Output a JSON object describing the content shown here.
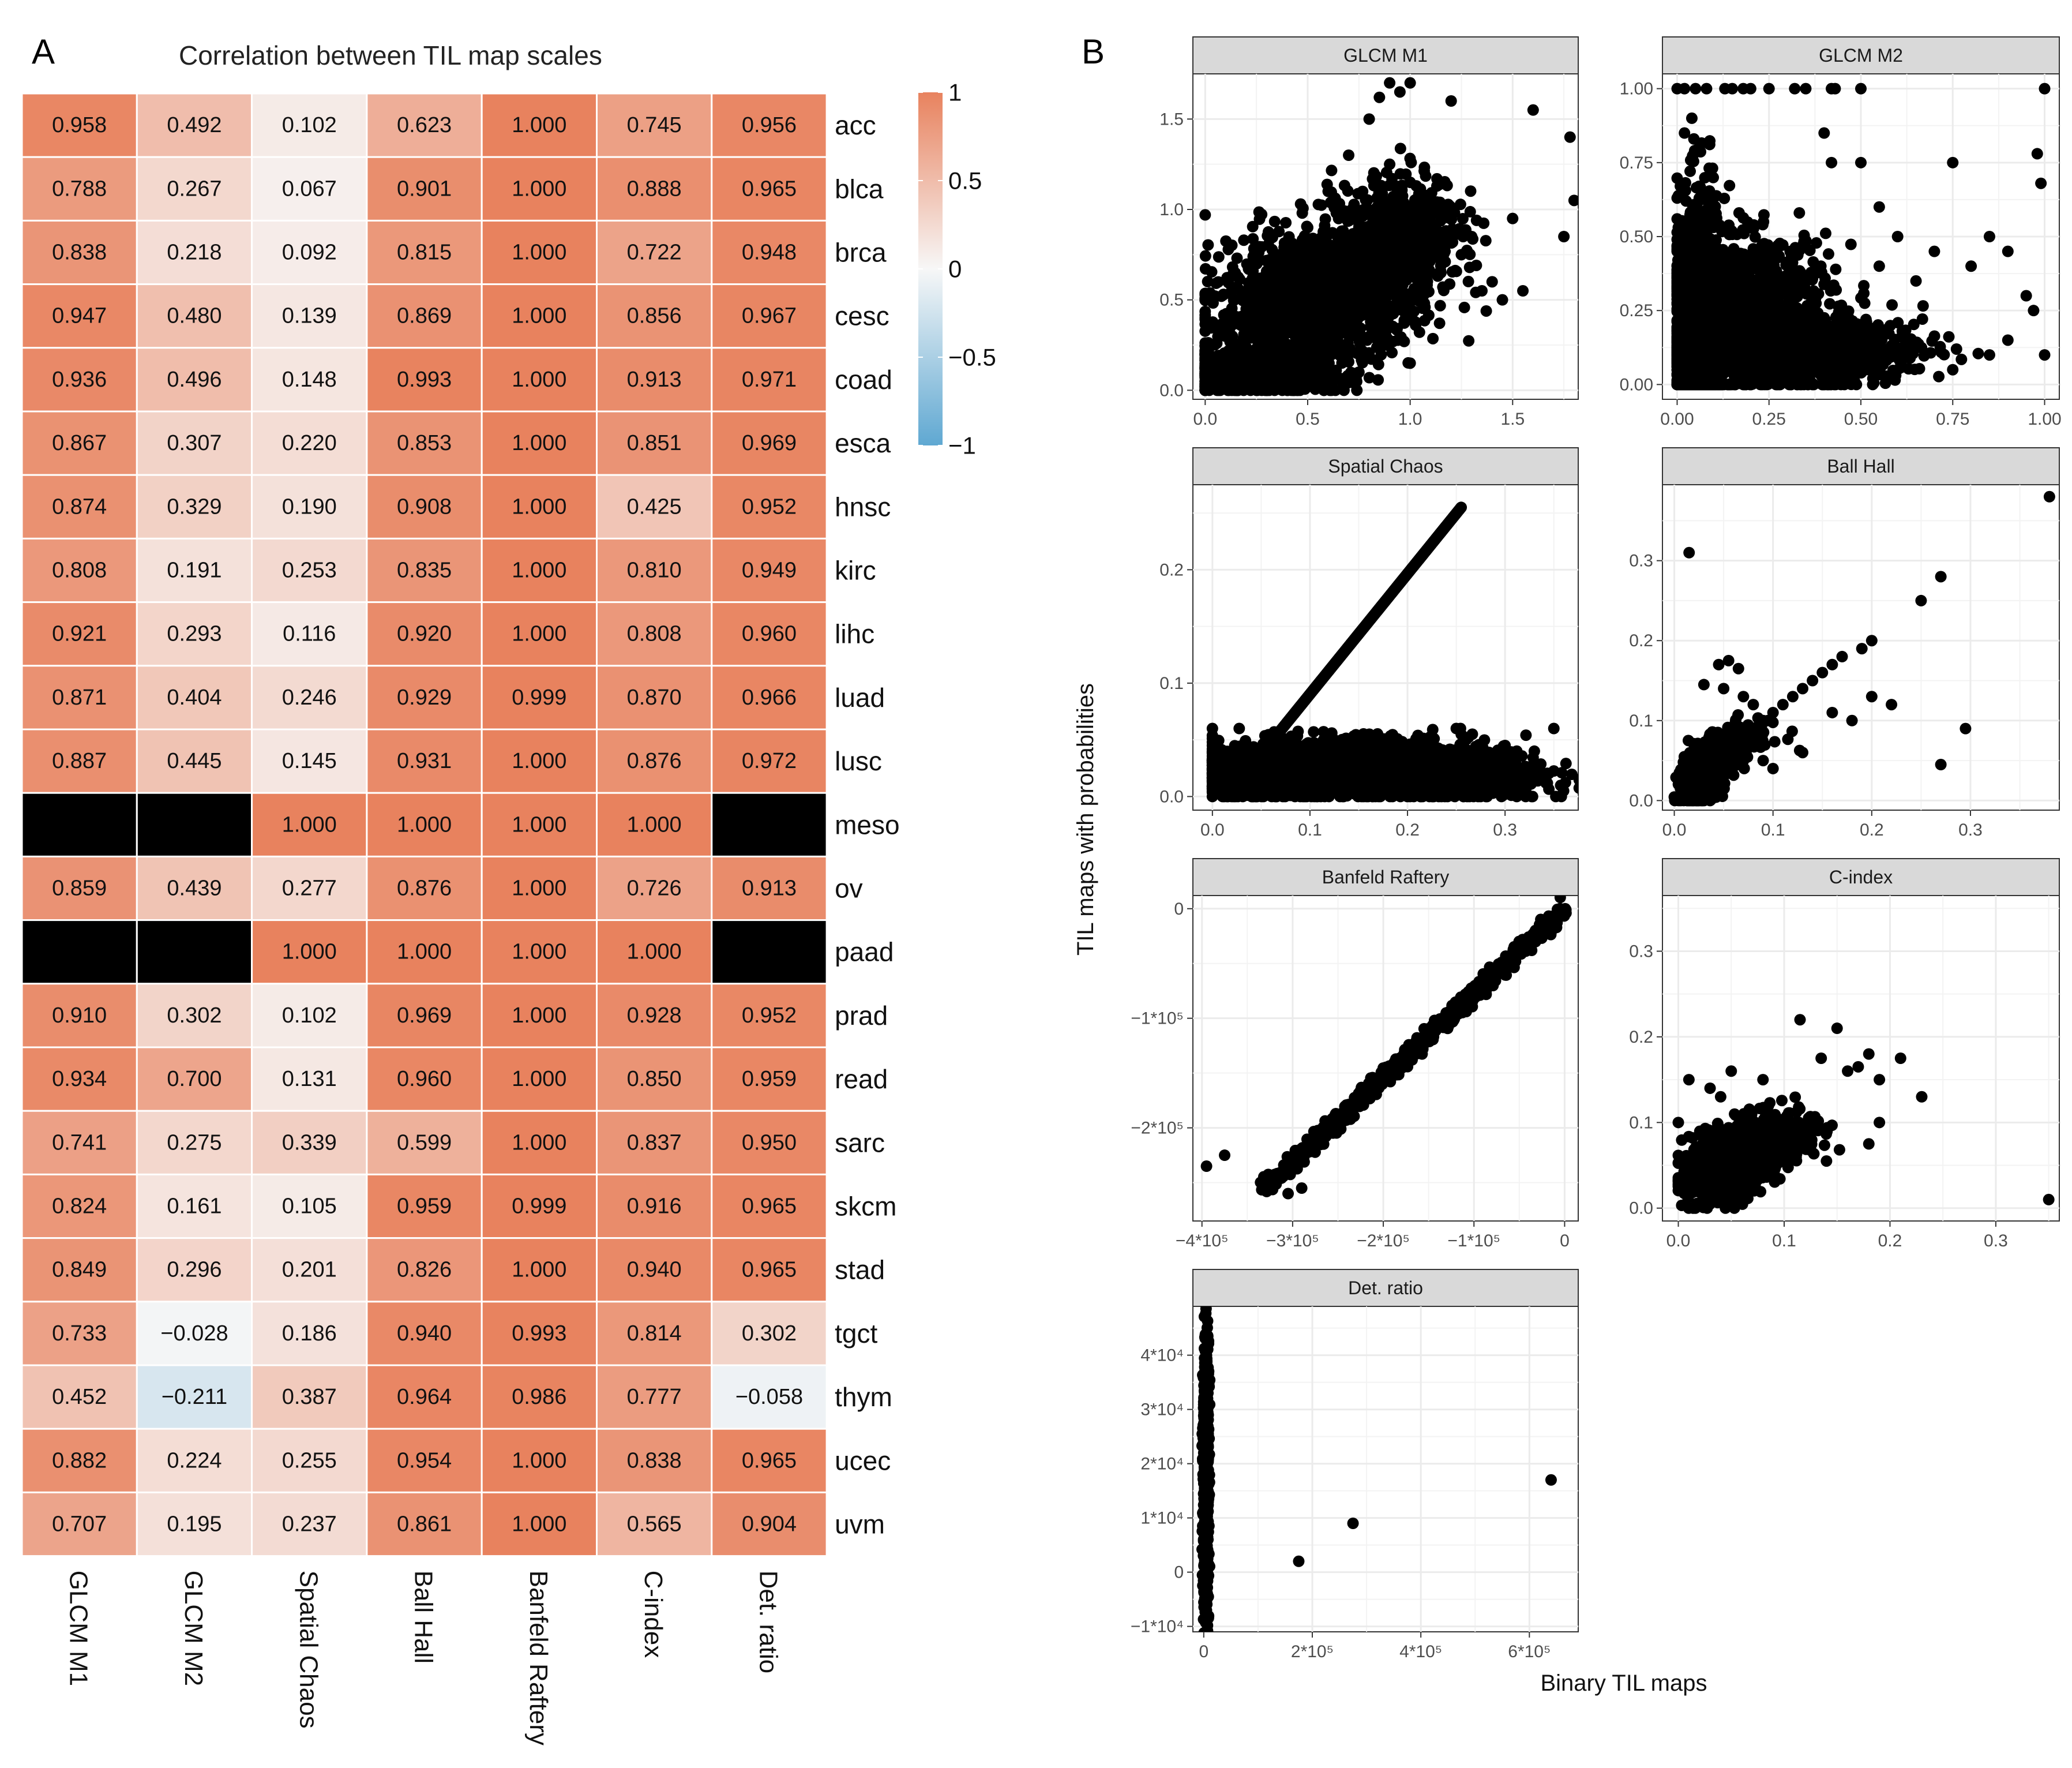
{
  "panel_a": {
    "letter": "A",
    "title": "Correlation between TIL map scales"
  },
  "panel_b": {
    "letter": "B",
    "xlabel": "Binary TIL maps",
    "ylabel": "TIL maps with probabilities"
  },
  "colors": {
    "high": "#E8825E",
    "mid": "#F7F7F7",
    "low": "#5FA8D2",
    "na": "#000000",
    "strip_fill": "#D9D9D9",
    "panel_grid": "#EBEBEB",
    "point": "#000000"
  },
  "chart_data": [
    {
      "type": "heatmap",
      "title": "Correlation between TIL map scales",
      "columns": [
        "GLCM M1",
        "GLCM M2",
        "Spatial Chaos",
        "Ball Hall",
        "Banfeld Raftery",
        "C-index",
        "Det. ratio"
      ],
      "rows": [
        "acc",
        "blca",
        "brca",
        "cesc",
        "coad",
        "esca",
        "hnsc",
        "kirc",
        "lihc",
        "luad",
        "lusc",
        "meso",
        "ov",
        "paad",
        "prad",
        "read",
        "sarc",
        "skcm",
        "stad",
        "tgct",
        "thym",
        "ucec",
        "uvm"
      ],
      "values": [
        [
          "0.958",
          "0.492",
          "0.102",
          "0.623",
          "1.000",
          "0.745",
          "0.956"
        ],
        [
          "0.788",
          "0.267",
          "0.067",
          "0.901",
          "1.000",
          "0.888",
          "0.965"
        ],
        [
          "0.838",
          "0.218",
          "0.092",
          "0.815",
          "1.000",
          "0.722",
          "0.948"
        ],
        [
          "0.947",
          "0.480",
          "0.139",
          "0.869",
          "1.000",
          "0.856",
          "0.967"
        ],
        [
          "0.936",
          "0.496",
          "0.148",
          "0.993",
          "1.000",
          "0.913",
          "0.971"
        ],
        [
          "0.867",
          "0.307",
          "0.220",
          "0.853",
          "1.000",
          "0.851",
          "0.969"
        ],
        [
          "0.874",
          "0.329",
          "0.190",
          "0.908",
          "1.000",
          "0.425",
          "0.952"
        ],
        [
          "0.808",
          "0.191",
          "0.253",
          "0.835",
          "1.000",
          "0.810",
          "0.949"
        ],
        [
          "0.921",
          "0.293",
          "0.116",
          "0.920",
          "1.000",
          "0.808",
          "0.960"
        ],
        [
          "0.871",
          "0.404",
          "0.246",
          "0.929",
          "0.999",
          "0.870",
          "0.966"
        ],
        [
          "0.887",
          "0.445",
          "0.145",
          "0.931",
          "1.000",
          "0.876",
          "0.972"
        ],
        [
          null,
          null,
          "1.000",
          "1.000",
          "1.000",
          "1.000",
          null
        ],
        [
          "0.859",
          "0.439",
          "0.277",
          "0.876",
          "1.000",
          "0.726",
          "0.913"
        ],
        [
          null,
          null,
          "1.000",
          "1.000",
          "1.000",
          "1.000",
          null
        ],
        [
          "0.910",
          "0.302",
          "0.102",
          "0.969",
          "1.000",
          "0.928",
          "0.952"
        ],
        [
          "0.934",
          "0.700",
          "0.131",
          "0.960",
          "1.000",
          "0.850",
          "0.959"
        ],
        [
          "0.741",
          "0.275",
          "0.339",
          "0.599",
          "1.000",
          "0.837",
          "0.950"
        ],
        [
          "0.824",
          "0.161",
          "0.105",
          "0.959",
          "0.999",
          "0.916",
          "0.965"
        ],
        [
          "0.849",
          "0.296",
          "0.201",
          "0.826",
          "1.000",
          "0.940",
          "0.965"
        ],
        [
          "0.733",
          "−0.028",
          "0.186",
          "0.940",
          "0.993",
          "0.814",
          "0.302"
        ],
        [
          "0.452",
          "−0.211",
          "0.387",
          "0.964",
          "0.986",
          "0.777",
          "−0.058"
        ],
        [
          "0.882",
          "0.224",
          "0.255",
          "0.954",
          "1.000",
          "0.838",
          "0.965"
        ],
        [
          "0.707",
          "0.195",
          "0.237",
          "0.861",
          "1.000",
          "0.565",
          "0.904"
        ]
      ],
      "legend": {
        "range": [
          -1,
          1
        ],
        "ticks": [
          "1",
          "0.5",
          "0",
          "−0.5",
          "−1"
        ],
        "tick_values": [
          1,
          0.5,
          0,
          -0.5,
          -1
        ]
      }
    },
    {
      "type": "scatter",
      "facet": "GLCM M1",
      "xlim": [
        -0.06,
        1.82
      ],
      "ylim": [
        -0.05,
        1.75
      ],
      "xticks": [
        0,
        0.5,
        1.0,
        1.5
      ],
      "xtick_labels": [
        "0.0",
        "0.5",
        "1.0",
        "1.5"
      ],
      "yticks": [
        0,
        0.5,
        1.0,
        1.5
      ],
      "ytick_labels": [
        "0.0",
        "0.5",
        "1.0",
        "1.5"
      ],
      "points": [
        [
          0.0,
          0.97
        ],
        [
          0.05,
          0.15
        ],
        [
          0.1,
          0.3
        ],
        [
          0.15,
          0.2
        ],
        [
          0.2,
          0.45
        ],
        [
          0.25,
          0.35
        ],
        [
          0.3,
          0.6
        ],
        [
          0.35,
          0.5
        ],
        [
          0.4,
          0.75
        ],
        [
          0.45,
          0.55
        ],
        [
          0.5,
          0.9
        ],
        [
          0.55,
          0.7
        ],
        [
          0.6,
          1.1
        ],
        [
          0.65,
          0.8
        ],
        [
          0.7,
          1.3
        ],
        [
          0.75,
          0.9
        ],
        [
          0.8,
          1.5
        ],
        [
          0.85,
          1.0
        ],
        [
          0.9,
          1.25
        ],
        [
          0.95,
          1.65
        ],
        [
          1.0,
          1.15
        ],
        [
          1.05,
          0.85
        ],
        [
          1.1,
          1.05
        ],
        [
          1.15,
          0.65
        ],
        [
          1.2,
          1.0
        ],
        [
          1.25,
          0.75
        ],
        [
          1.3,
          0.85
        ],
        [
          1.35,
          0.55
        ],
        [
          1.4,
          0.6
        ],
        [
          1.45,
          0.5
        ],
        [
          1.5,
          0.95
        ],
        [
          1.55,
          0.55
        ],
        [
          1.6,
          1.55
        ],
        [
          1.78,
          1.4
        ],
        [
          1.8,
          1.05
        ],
        [
          1.75,
          0.85
        ],
        [
          0.02,
          0.0
        ],
        [
          0.1,
          0.05
        ],
        [
          0.25,
          0.0
        ],
        [
          0.5,
          0.05
        ],
        [
          0.75,
          0.1
        ],
        [
          1.0,
          0.15
        ],
        [
          0.9,
          1.7
        ],
        [
          1.0,
          1.7
        ],
        [
          0.85,
          1.62
        ],
        [
          1.2,
          1.6
        ]
      ],
      "clouds": [
        {
          "cx": 0.55,
          "cy": 0.5,
          "rx": 0.6,
          "ry": 0.45,
          "n": 1500,
          "tilt": 0.55
        },
        {
          "cx": 0.25,
          "cy": 0.1,
          "rx": 0.35,
          "ry": 0.1,
          "n": 600,
          "tilt": 0.0
        },
        {
          "cx": 0.95,
          "cy": 0.85,
          "rx": 0.3,
          "ry": 0.35,
          "n": 450,
          "tilt": 0.3
        }
      ]
    },
    {
      "type": "scatter",
      "facet": "GLCM M2",
      "xlim": [
        -0.04,
        1.04
      ],
      "ylim": [
        -0.05,
        1.05
      ],
      "xticks": [
        0,
        0.25,
        0.5,
        0.75,
        1.0
      ],
      "xtick_labels": [
        "0.00",
        "0.25",
        "0.50",
        "0.75",
        "1.00"
      ],
      "yticks": [
        0,
        0.25,
        0.5,
        0.75,
        1.0
      ],
      "ytick_labels": [
        "0.00",
        "0.25",
        "0.50",
        "0.75",
        "1.00"
      ],
      "points": [
        [
          0.0,
          1.0
        ],
        [
          0.02,
          1.0
        ],
        [
          0.05,
          1.0
        ],
        [
          0.08,
          1.0
        ],
        [
          0.13,
          1.0
        ],
        [
          0.15,
          1.0
        ],
        [
          0.18,
          1.0
        ],
        [
          0.2,
          1.0
        ],
        [
          0.25,
          1.0
        ],
        [
          0.32,
          1.0
        ],
        [
          0.35,
          1.0
        ],
        [
          0.42,
          1.0
        ],
        [
          0.43,
          1.0
        ],
        [
          0.5,
          1.0
        ],
        [
          1.0,
          1.0
        ],
        [
          0.04,
          0.9
        ],
        [
          0.02,
          0.85
        ],
        [
          0.06,
          0.8
        ],
        [
          0.4,
          0.85
        ],
        [
          0.42,
          0.75
        ],
        [
          0.5,
          0.75
        ],
        [
          0.75,
          0.75
        ],
        [
          0.98,
          0.78
        ],
        [
          0.99,
          0.68
        ],
        [
          0.55,
          0.6
        ],
        [
          0.6,
          0.5
        ],
        [
          0.7,
          0.45
        ],
        [
          0.85,
          0.5
        ],
        [
          0.9,
          0.45
        ],
        [
          0.8,
          0.4
        ],
        [
          0.95,
          0.3
        ],
        [
          0.97,
          0.25
        ],
        [
          0.9,
          0.15
        ],
        [
          0.85,
          0.1
        ],
        [
          0.75,
          0.05
        ],
        [
          1.0,
          0.1
        ],
        [
          0.65,
          0.35
        ],
        [
          0.55,
          0.4
        ]
      ],
      "clouds": [
        {
          "cx": 0.06,
          "cy": 0.2,
          "rx": 0.07,
          "ry": 0.45,
          "n": 900,
          "tilt": 0.0
        },
        {
          "cx": 0.25,
          "cy": 0.1,
          "rx": 0.3,
          "ry": 0.12,
          "n": 900,
          "tilt": 0.0
        },
        {
          "cx": 0.2,
          "cy": 0.3,
          "rx": 0.22,
          "ry": 0.2,
          "n": 700,
          "tilt": 0.0
        },
        {
          "cx": 0.45,
          "cy": 0.12,
          "rx": 0.3,
          "ry": 0.12,
          "n": 250,
          "tilt": 0.0
        }
      ]
    },
    {
      "type": "scatter",
      "facet": "Spatial Chaos",
      "xlim": [
        -0.02,
        0.375
      ],
      "ylim": [
        -0.012,
        0.275
      ],
      "xticks": [
        0,
        0.1,
        0.2,
        0.3
      ],
      "xtick_labels": [
        "0.0",
        "0.1",
        "0.2",
        "0.3"
      ],
      "yticks": [
        0,
        0.1,
        0.2
      ],
      "ytick_labels": [
        "0.0",
        "0.1",
        "0.2"
      ],
      "line": {
        "x0": 0.015,
        "y0": 0.0,
        "x1": 0.255,
        "y1": 0.255,
        "n": 260
      },
      "points": [
        [
          0.0,
          0.04
        ],
        [
          0.0,
          0.03
        ],
        [
          0.0,
          0.02
        ],
        [
          0.0,
          0.01
        ],
        [
          0.0,
          0.0
        ],
        [
          0.36,
          0.005
        ],
        [
          0.35,
          0.06
        ],
        [
          0.33,
          0.04
        ],
        [
          0.3,
          0.045
        ],
        [
          0.25,
          0.06
        ]
      ],
      "clouds": [
        {
          "cx": 0.13,
          "cy": 0.025,
          "rx": 0.13,
          "ry": 0.025,
          "n": 1800,
          "tilt": 0.0
        },
        {
          "cx": 0.25,
          "cy": 0.02,
          "rx": 0.09,
          "ry": 0.025,
          "n": 500,
          "tilt": 0.0
        },
        {
          "cx": 0.05,
          "cy": 0.01,
          "rx": 0.05,
          "ry": 0.012,
          "n": 400,
          "tilt": 0.0
        }
      ]
    },
    {
      "type": "scatter",
      "facet": "Ball Hall",
      "xlim": [
        -0.012,
        0.39
      ],
      "ylim": [
        -0.012,
        0.395
      ],
      "xticks": [
        0,
        0.1,
        0.2,
        0.3
      ],
      "xtick_labels": [
        "0.0",
        "0.1",
        "0.2",
        "0.3"
      ],
      "yticks": [
        0,
        0.1,
        0.2,
        0.3
      ],
      "ytick_labels": [
        "0.0",
        "0.1",
        "0.2",
        "0.3"
      ],
      "points": [
        [
          0.38,
          0.38
        ],
        [
          0.015,
          0.31
        ],
        [
          0.27,
          0.28
        ],
        [
          0.25,
          0.25
        ],
        [
          0.2,
          0.2
        ],
        [
          0.19,
          0.19
        ],
        [
          0.17,
          0.18
        ],
        [
          0.16,
          0.17
        ],
        [
          0.15,
          0.16
        ],
        [
          0.14,
          0.15
        ],
        [
          0.13,
          0.14
        ],
        [
          0.12,
          0.13
        ],
        [
          0.11,
          0.12
        ],
        [
          0.1,
          0.11
        ],
        [
          0.09,
          0.1
        ],
        [
          0.08,
          0.09
        ],
        [
          0.07,
          0.08
        ],
        [
          0.055,
          0.175
        ],
        [
          0.045,
          0.17
        ],
        [
          0.065,
          0.165
        ],
        [
          0.03,
          0.145
        ],
        [
          0.05,
          0.14
        ],
        [
          0.07,
          0.13
        ],
        [
          0.08,
          0.12
        ],
        [
          0.295,
          0.09
        ],
        [
          0.27,
          0.045
        ],
        [
          0.16,
          0.11
        ],
        [
          0.18,
          0.1
        ],
        [
          0.13,
          0.06
        ],
        [
          0.09,
          0.05
        ],
        [
          0.1,
          0.04
        ],
        [
          0.05,
          0.03
        ],
        [
          0.2,
          0.13
        ],
        [
          0.22,
          0.12
        ]
      ],
      "clouds": [
        {
          "cx": 0.03,
          "cy": 0.03,
          "rx": 0.035,
          "ry": 0.035,
          "n": 400,
          "tilt": 0.9
        },
        {
          "cx": 0.06,
          "cy": 0.07,
          "rx": 0.05,
          "ry": 0.03,
          "n": 150,
          "tilt": 0.7
        }
      ]
    },
    {
      "type": "scatter",
      "facet": "Banfeld Raftery",
      "xlim": [
        -410000,
        15000
      ],
      "ylim": [
        -285000,
        12000
      ],
      "xticks": [
        -400000,
        -300000,
        -200000,
        -100000,
        0
      ],
      "xtick_labels": [
        "−4*10⁵",
        "−3*10⁵",
        "−2*10⁵",
        "−1*10⁵",
        "0"
      ],
      "yticks": [
        -200000,
        -100000,
        0
      ],
      "ytick_labels": [
        "−2*10⁵",
        "−1*10⁵",
        "0"
      ],
      "line": {
        "x0": -330000,
        "y0": -255000,
        "x1": 0,
        "y1": 0,
        "n": 700,
        "jitter": 7000
      },
      "points": [
        [
          -395000,
          -235000
        ],
        [
          -375000,
          -225000
        ],
        [
          -305000,
          -260000
        ],
        [
          -290000,
          -255000
        ]
      ],
      "clouds": []
    },
    {
      "type": "scatter",
      "facet": "C-index",
      "xlim": [
        -0.015,
        0.36
      ],
      "ylim": [
        -0.015,
        0.365
      ],
      "xticks": [
        0,
        0.1,
        0.2,
        0.3
      ],
      "xtick_labels": [
        "0.0",
        "0.1",
        "0.2",
        "0.3"
      ],
      "yticks": [
        0,
        0.1,
        0.2,
        0.3
      ],
      "ytick_labels": [
        "0.0",
        "0.1",
        "0.2",
        "0.3"
      ],
      "points": [
        [
          0.35,
          0.01
        ],
        [
          0.23,
          0.13
        ],
        [
          0.21,
          0.175
        ],
        [
          0.18,
          0.18
        ],
        [
          0.15,
          0.21
        ],
        [
          0.135,
          0.175
        ],
        [
          0.115,
          0.22
        ],
        [
          0.08,
          0.15
        ],
        [
          0.05,
          0.16
        ],
        [
          0.17,
          0.165
        ],
        [
          0.16,
          0.16
        ],
        [
          0.19,
          0.15
        ],
        [
          0.18,
          0.075
        ],
        [
          0.14,
          0.055
        ],
        [
          0.04,
          0.13
        ],
        [
          0.03,
          0.14
        ],
        [
          0.01,
          0.15
        ],
        [
          0.0,
          0.1
        ],
        [
          0.19,
          0.1
        ]
      ],
      "clouds": [
        {
          "cx": 0.045,
          "cy": 0.05,
          "rx": 0.045,
          "ry": 0.04,
          "n": 900,
          "tilt": 0.6
        },
        {
          "cx": 0.09,
          "cy": 0.08,
          "rx": 0.05,
          "ry": 0.035,
          "n": 350,
          "tilt": 0.5
        }
      ]
    },
    {
      "type": "scatter",
      "facet": "Det. ratio",
      "xlim": [
        -20000,
        690000
      ],
      "ylim": [
        -11000,
        49000
      ],
      "xticks": [
        0,
        200000,
        400000,
        600000
      ],
      "xtick_labels": [
        "0",
        "2*10⁵",
        "4*10⁵",
        "6*10⁵"
      ],
      "yticks": [
        -10000,
        0,
        10000,
        20000,
        30000,
        40000
      ],
      "ytick_labels": [
        "−1*10⁴",
        "0",
        "1*10⁴",
        "2*10⁴",
        "3*10⁴",
        "4*10⁴"
      ],
      "points": [
        [
          175000,
          2000
        ],
        [
          275000,
          9000
        ],
        [
          640000,
          17000
        ]
      ],
      "clouds": [
        {
          "cx": 4000,
          "cy": 18000,
          "rx": 5000,
          "ry": 29000,
          "n": 700,
          "tilt": 0.0
        }
      ]
    }
  ]
}
